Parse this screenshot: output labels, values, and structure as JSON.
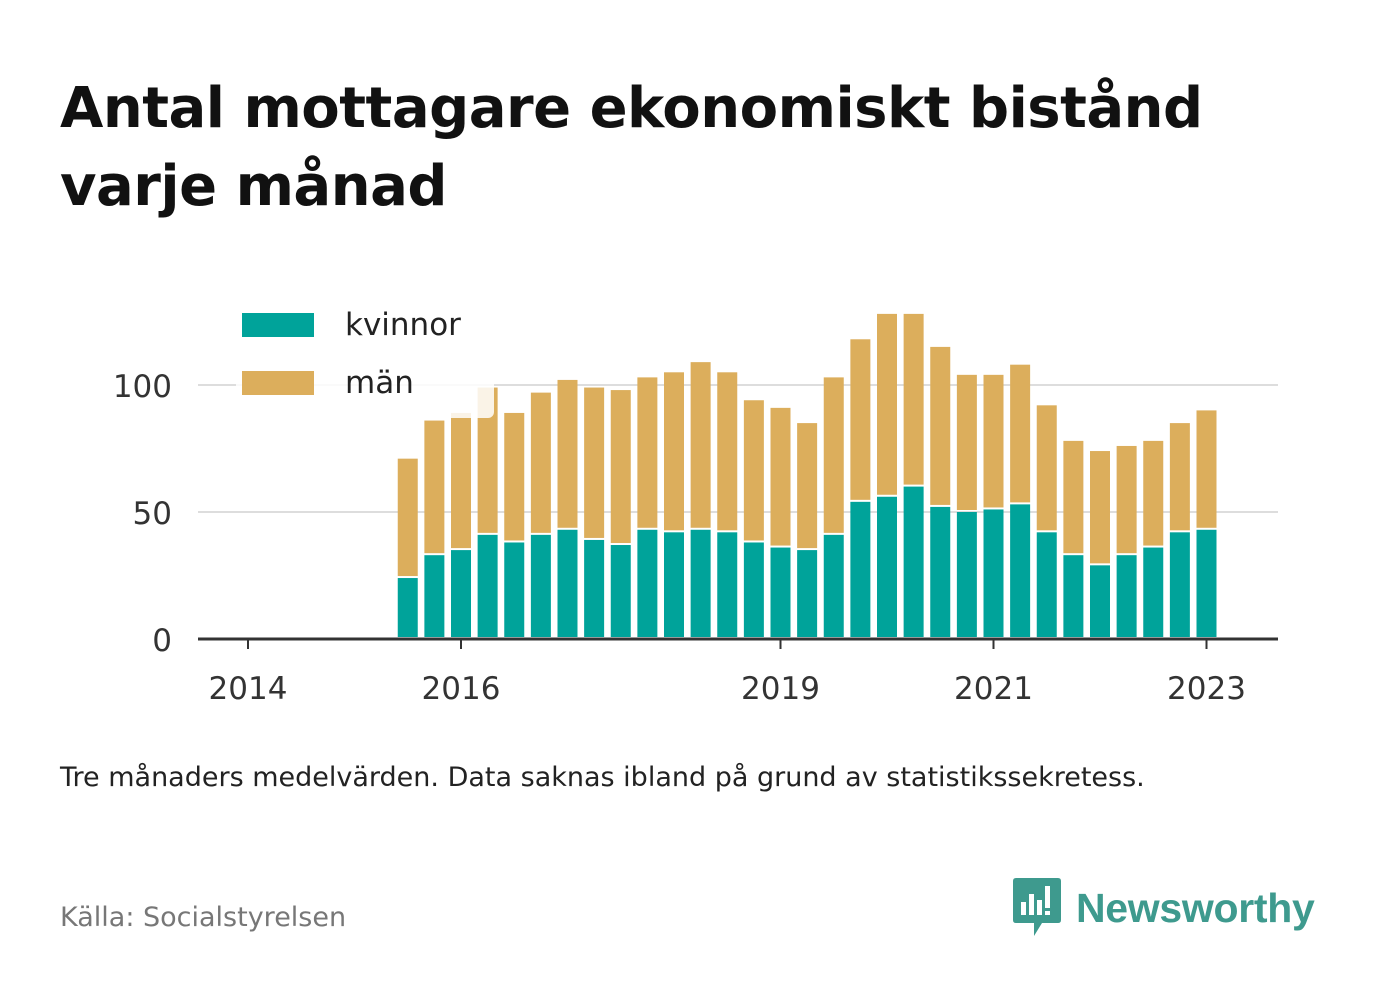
{
  "title": "Antal mottagare ekonomiskt bistånd varje månad",
  "note": "Tre månaders medelvärden. Data saknas ibland på grund av statistikssekretess.",
  "source": "Källa: Socialstyrelsen",
  "brand": {
    "name": "Newsworthy",
    "color": "#3e9a8e"
  },
  "chart_data": {
    "type": "bar",
    "stacked": true,
    "legend_position": "top-left",
    "grid": true,
    "ylim": [
      0,
      130
    ],
    "yticks": [
      0,
      50,
      100
    ],
    "xticks": [
      {
        "label": "2014",
        "x": 2014.0
      },
      {
        "label": "2016",
        "x": 2016.0
      },
      {
        "label": "2019",
        "x": 2019.0
      },
      {
        "label": "2021",
        "x": 2021.0
      },
      {
        "label": "2023",
        "x": 2023.0
      }
    ],
    "x": [
      2015.5,
      2015.75,
      2016.0,
      2016.25,
      2016.5,
      2016.75,
      2017.0,
      2017.25,
      2017.5,
      2017.75,
      2018.0,
      2018.25,
      2018.5,
      2018.75,
      2019.0,
      2019.25,
      2019.5,
      2019.75,
      2020.0,
      2020.25,
      2020.5,
      2020.75,
      2021.0,
      2021.25,
      2021.5,
      2021.75,
      2022.0,
      2022.25,
      2022.5,
      2022.75,
      2023.0
    ],
    "series": [
      {
        "name": "kvinnor",
        "color": "#00a39a",
        "values": [
          24,
          33,
          35,
          41,
          38,
          41,
          43,
          39,
          37,
          43,
          42,
          43,
          42,
          38,
          36,
          35,
          41,
          54,
          56,
          60,
          52,
          50,
          51,
          53,
          42,
          33,
          29,
          33,
          36,
          42,
          43
        ]
      },
      {
        "name": "män",
        "color": "#dcae5c",
        "values": [
          47,
          53,
          54,
          58,
          51,
          56,
          59,
          60,
          61,
          60,
          63,
          66,
          63,
          56,
          55,
          50,
          62,
          64,
          72,
          68,
          63,
          54,
          53,
          55,
          50,
          45,
          45,
          43,
          42,
          43,
          47
        ]
      }
    ]
  }
}
